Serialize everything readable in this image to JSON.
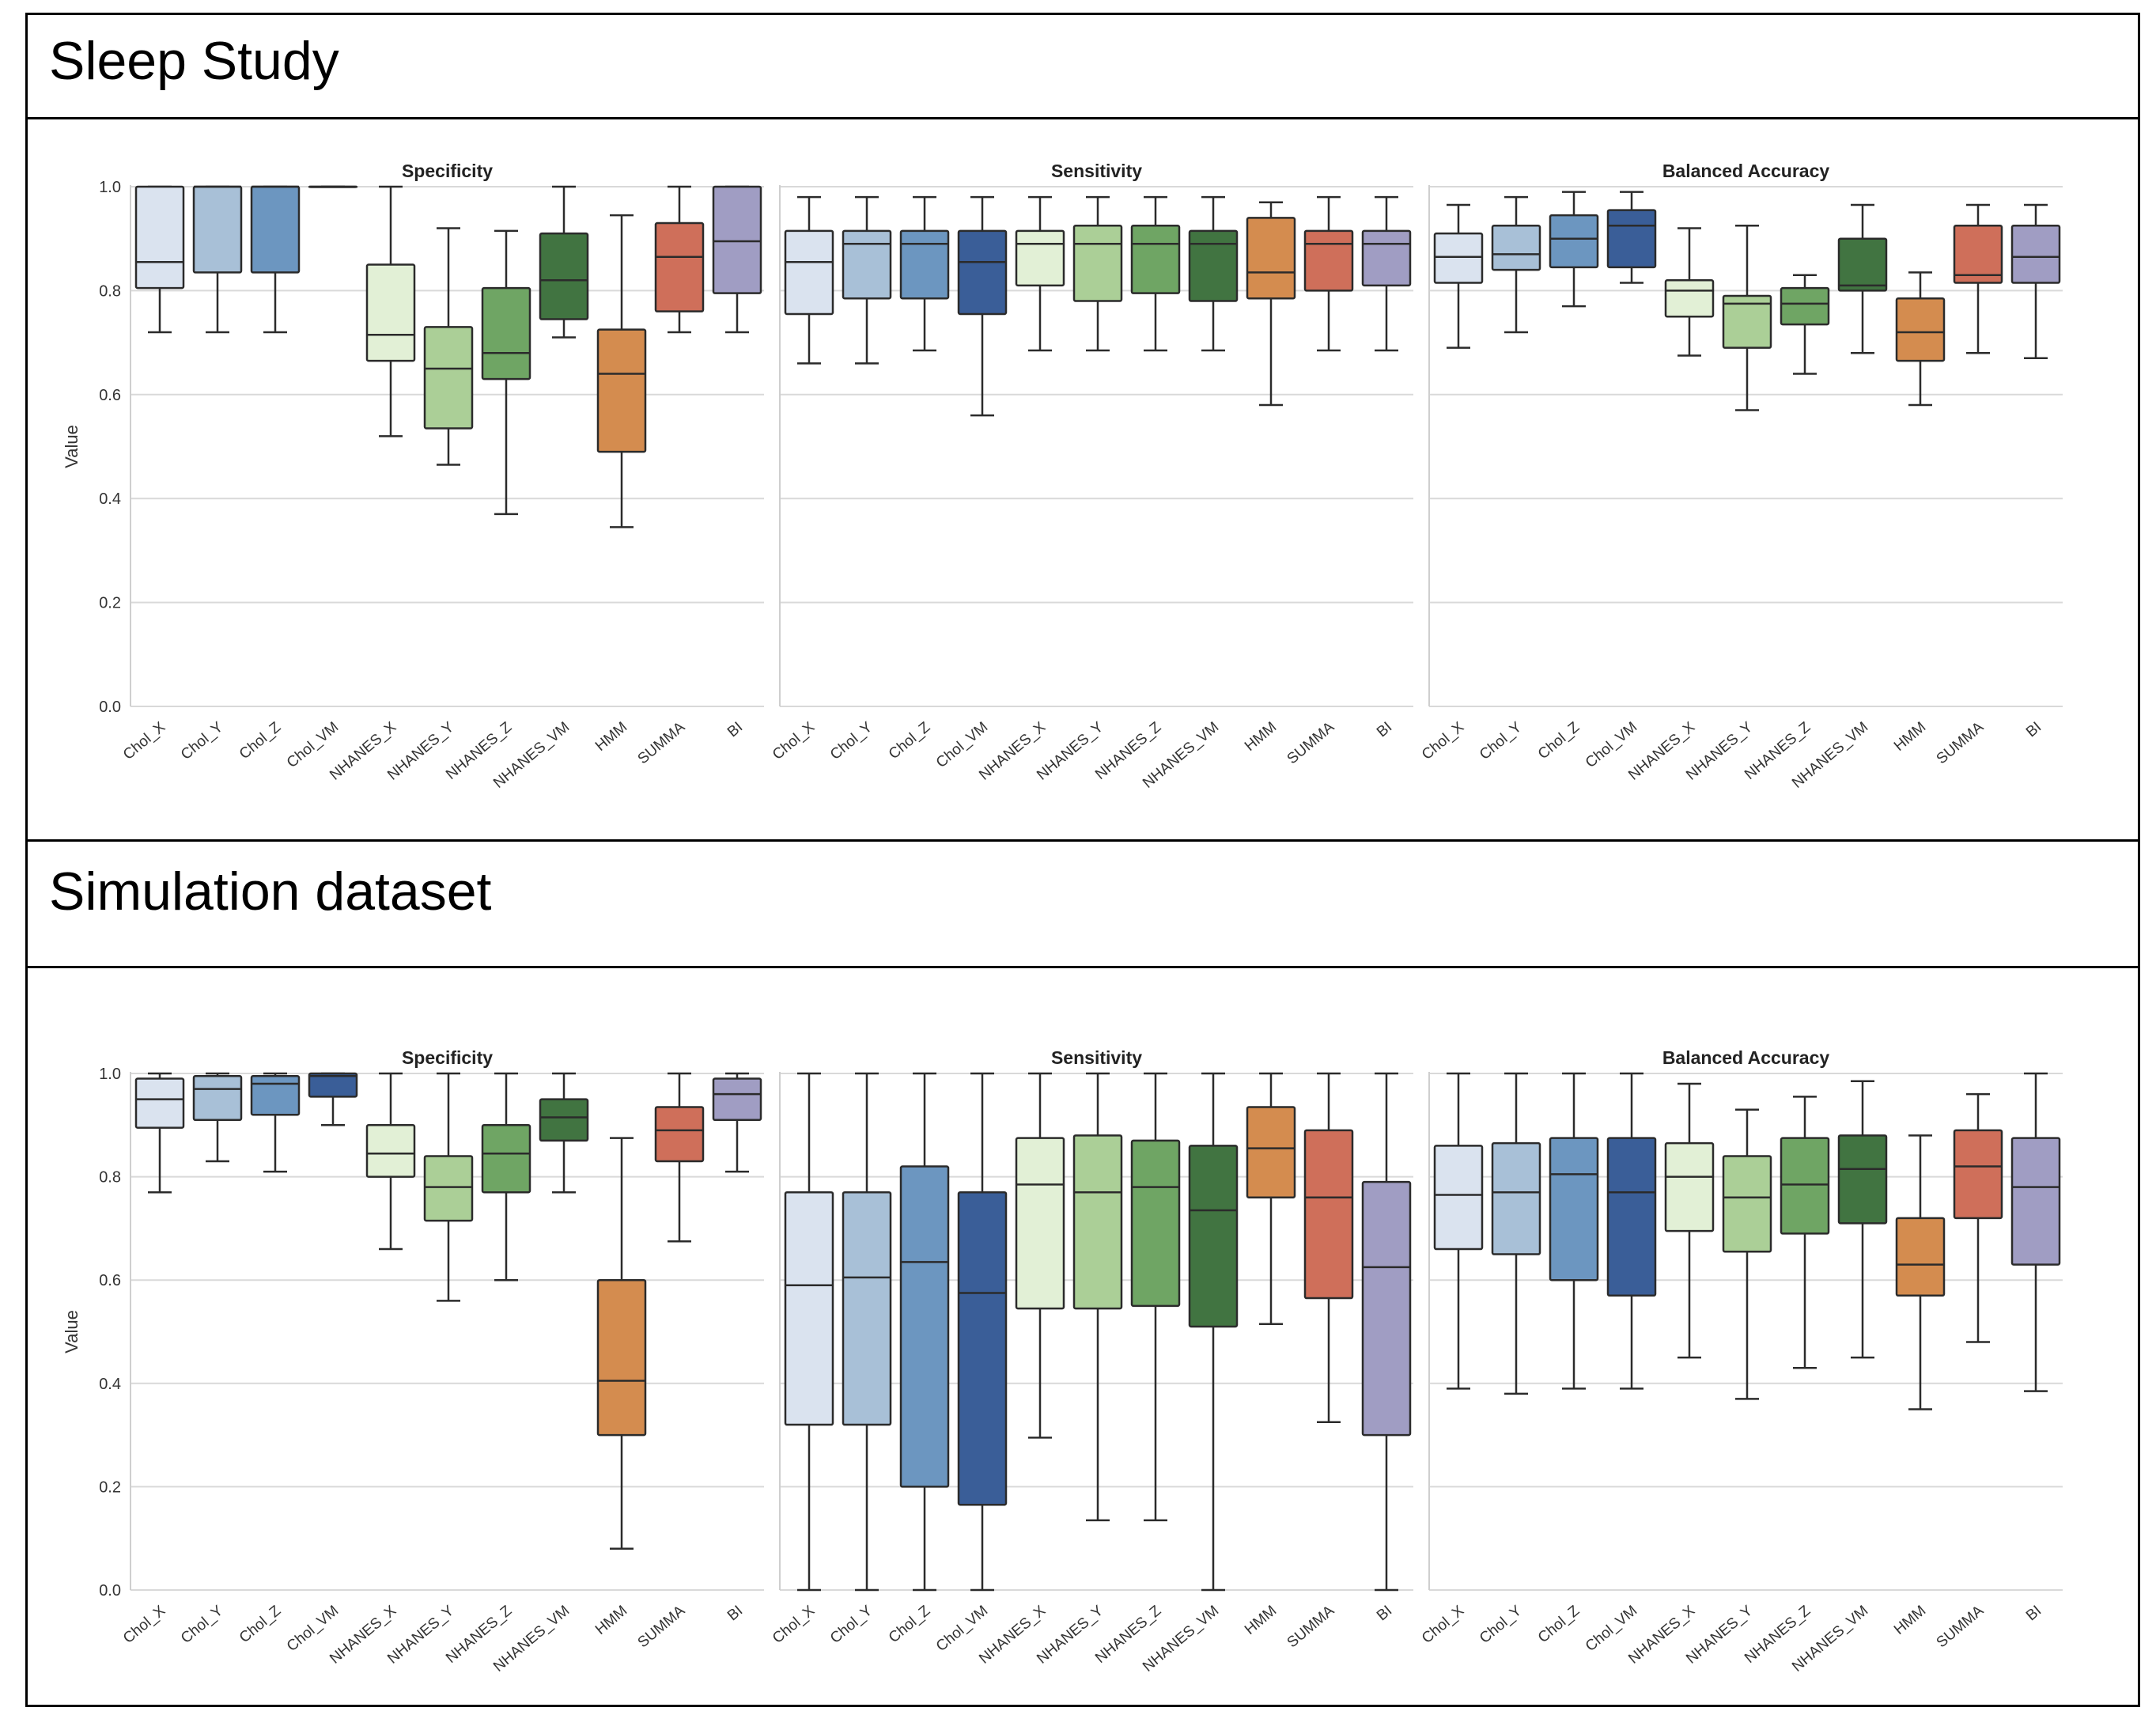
{
  "figure": {
    "sections": [
      {
        "title": "Sleep Study"
      },
      {
        "title": "Simulation dataset"
      }
    ]
  },
  "palette": {
    "Chol_X": "#dae3ef",
    "Chol_Y": "#a8c0d7",
    "Chol_Z": "#6c96c0",
    "Chol_VM": "#3a5e98",
    "NHANES_X": "#e2f0d6",
    "NHANES_Y": "#abcf97",
    "NHANES_Z": "#6fa564",
    "NHANES_VM": "#417441",
    "HMM": "#d48c4f",
    "SUMMA": "#cf6f5a",
    "BI": "#a09dc3",
    "line": "#2b2b2b",
    "grid": "#d9d9d9"
  },
  "chart_data": [
    {
      "type": "box",
      "section": "Sleep Study",
      "ylabel": "Value",
      "ylim": [
        0,
        1
      ],
      "yticks": [
        "0.0",
        "0.2",
        "0.4",
        "0.6",
        "0.8",
        "1.0"
      ],
      "grid": "horizontal",
      "categories": [
        "Chol_X",
        "Chol_Y",
        "Chol_Z",
        "Chol_VM",
        "NHANES_X",
        "NHANES_Y",
        "NHANES_Z",
        "NHANES_VM",
        "HMM",
        "SUMMA",
        "BI"
      ],
      "panels": [
        {
          "title": "Specificity",
          "boxes": [
            {
              "min": 0.72,
              "q1": 0.805,
              "median": 0.855,
              "q3": 1.0,
              "max": 1.0
            },
            {
              "min": 0.72,
              "q1": 0.835,
              "median": 1.0,
              "q3": 1.0,
              "max": 1.0
            },
            {
              "min": 0.72,
              "q1": 0.835,
              "median": 1.0,
              "q3": 1.0,
              "max": 1.0
            },
            {
              "min": 1.0,
              "q1": 1.0,
              "median": 1.0,
              "q3": 1.0,
              "max": 1.0
            },
            {
              "min": 0.52,
              "q1": 0.665,
              "median": 0.715,
              "q3": 0.85,
              "max": 1.0
            },
            {
              "min": 0.465,
              "q1": 0.535,
              "median": 0.65,
              "q3": 0.73,
              "max": 0.92
            },
            {
              "min": 0.37,
              "q1": 0.63,
              "median": 0.68,
              "q3": 0.805,
              "max": 0.915
            },
            {
              "min": 0.71,
              "q1": 0.745,
              "median": 0.82,
              "q3": 0.91,
              "max": 1.0
            },
            {
              "min": 0.345,
              "q1": 0.49,
              "median": 0.64,
              "q3": 0.725,
              "max": 0.945
            },
            {
              "min": 0.72,
              "q1": 0.76,
              "median": 0.865,
              "q3": 0.93,
              "max": 1.0
            },
            {
              "min": 0.72,
              "q1": 0.795,
              "median": 0.895,
              "q3": 1.0,
              "max": 1.0
            }
          ]
        },
        {
          "title": "Sensitivity",
          "boxes": [
            {
              "min": 0.66,
              "q1": 0.755,
              "median": 0.855,
              "q3": 0.915,
              "max": 0.98
            },
            {
              "min": 0.66,
              "q1": 0.785,
              "median": 0.89,
              "q3": 0.915,
              "max": 0.98
            },
            {
              "min": 0.685,
              "q1": 0.785,
              "median": 0.89,
              "q3": 0.915,
              "max": 0.98
            },
            {
              "min": 0.56,
              "q1": 0.755,
              "median": 0.855,
              "q3": 0.915,
              "max": 0.98
            },
            {
              "min": 0.685,
              "q1": 0.81,
              "median": 0.89,
              "q3": 0.915,
              "max": 0.98
            },
            {
              "min": 0.685,
              "q1": 0.78,
              "median": 0.89,
              "q3": 0.925,
              "max": 0.98
            },
            {
              "min": 0.685,
              "q1": 0.795,
              "median": 0.89,
              "q3": 0.925,
              "max": 0.98
            },
            {
              "min": 0.685,
              "q1": 0.78,
              "median": 0.89,
              "q3": 0.915,
              "max": 0.98
            },
            {
              "min": 0.58,
              "q1": 0.785,
              "median": 0.835,
              "q3": 0.94,
              "max": 0.97
            },
            {
              "min": 0.685,
              "q1": 0.8,
              "median": 0.89,
              "q3": 0.915,
              "max": 0.98
            },
            {
              "min": 0.685,
              "q1": 0.81,
              "median": 0.89,
              "q3": 0.915,
              "max": 0.98
            }
          ]
        },
        {
          "title": "Balanced Accuracy",
          "boxes": [
            {
              "min": 0.69,
              "q1": 0.815,
              "median": 0.865,
              "q3": 0.91,
              "max": 0.965
            },
            {
              "min": 0.72,
              "q1": 0.84,
              "median": 0.87,
              "q3": 0.925,
              "max": 0.98
            },
            {
              "min": 0.77,
              "q1": 0.845,
              "median": 0.9,
              "q3": 0.945,
              "max": 0.99
            },
            {
              "min": 0.815,
              "q1": 0.845,
              "median": 0.925,
              "q3": 0.955,
              "max": 0.99
            },
            {
              "min": 0.675,
              "q1": 0.75,
              "median": 0.8,
              "q3": 0.82,
              "max": 0.92
            },
            {
              "min": 0.57,
              "q1": 0.69,
              "median": 0.775,
              "q3": 0.79,
              "max": 0.925
            },
            {
              "min": 0.64,
              "q1": 0.735,
              "median": 0.775,
              "q3": 0.805,
              "max": 0.83
            },
            {
              "min": 0.68,
              "q1": 0.8,
              "median": 0.81,
              "q3": 0.9,
              "max": 0.965
            },
            {
              "min": 0.58,
              "q1": 0.665,
              "median": 0.72,
              "q3": 0.785,
              "max": 0.835
            },
            {
              "min": 0.68,
              "q1": 0.815,
              "median": 0.83,
              "q3": 0.925,
              "max": 0.965
            },
            {
              "min": 0.67,
              "q1": 0.815,
              "median": 0.865,
              "q3": 0.925,
              "max": 0.965
            }
          ]
        }
      ]
    },
    {
      "type": "box",
      "section": "Simulation dataset",
      "ylabel": "Value",
      "ylim": [
        0,
        1
      ],
      "yticks": [
        "0.0",
        "0.2",
        "0.4",
        "0.6",
        "0.8",
        "1.0"
      ],
      "grid": "horizontal",
      "categories": [
        "Chol_X",
        "Chol_Y",
        "Chol_Z",
        "Chol_VM",
        "NHANES_X",
        "NHANES_Y",
        "NHANES_Z",
        "NHANES_VM",
        "HMM",
        "SUMMA",
        "BI"
      ],
      "panels": [
        {
          "title": "Specificity",
          "boxes": [
            {
              "min": 0.77,
              "q1": 0.895,
              "median": 0.95,
              "q3": 0.99,
              "max": 1.0
            },
            {
              "min": 0.83,
              "q1": 0.91,
              "median": 0.97,
              "q3": 0.995,
              "max": 1.0
            },
            {
              "min": 0.81,
              "q1": 0.92,
              "median": 0.98,
              "q3": 0.995,
              "max": 1.0
            },
            {
              "min": 0.9,
              "q1": 0.955,
              "median": 0.995,
              "q3": 1.0,
              "max": 1.0
            },
            {
              "min": 0.66,
              "q1": 0.8,
              "median": 0.845,
              "q3": 0.9,
              "max": 1.0
            },
            {
              "min": 0.56,
              "q1": 0.715,
              "median": 0.78,
              "q3": 0.84,
              "max": 1.0
            },
            {
              "min": 0.6,
              "q1": 0.77,
              "median": 0.845,
              "q3": 0.9,
              "max": 1.0
            },
            {
              "min": 0.77,
              "q1": 0.87,
              "median": 0.915,
              "q3": 0.95,
              "max": 1.0
            },
            {
              "min": 0.08,
              "q1": 0.3,
              "median": 0.405,
              "q3": 0.6,
              "max": 0.875
            },
            {
              "min": 0.675,
              "q1": 0.83,
              "median": 0.89,
              "q3": 0.935,
              "max": 1.0
            },
            {
              "min": 0.81,
              "q1": 0.91,
              "median": 0.96,
              "q3": 0.99,
              "max": 1.0
            }
          ]
        },
        {
          "title": "Sensitivity",
          "boxes": [
            {
              "min": 0.0,
              "q1": 0.32,
              "median": 0.59,
              "q3": 0.77,
              "max": 1.0
            },
            {
              "min": 0.0,
              "q1": 0.32,
              "median": 0.605,
              "q3": 0.77,
              "max": 1.0
            },
            {
              "min": 0.0,
              "q1": 0.2,
              "median": 0.635,
              "q3": 0.82,
              "max": 1.0
            },
            {
              "min": 0.0,
              "q1": 0.165,
              "median": 0.575,
              "q3": 0.77,
              "max": 1.0
            },
            {
              "min": 0.295,
              "q1": 0.545,
              "median": 0.785,
              "q3": 0.875,
              "max": 1.0
            },
            {
              "min": 0.135,
              "q1": 0.545,
              "median": 0.77,
              "q3": 0.88,
              "max": 1.0
            },
            {
              "min": 0.135,
              "q1": 0.55,
              "median": 0.78,
              "q3": 0.87,
              "max": 1.0
            },
            {
              "min": 0.0,
              "q1": 0.51,
              "median": 0.735,
              "q3": 0.86,
              "max": 1.0
            },
            {
              "min": 0.515,
              "q1": 0.76,
              "median": 0.855,
              "q3": 0.935,
              "max": 1.0
            },
            {
              "min": 0.325,
              "q1": 0.565,
              "median": 0.76,
              "q3": 0.89,
              "max": 1.0
            },
            {
              "min": 0.0,
              "q1": 0.3,
              "median": 0.625,
              "q3": 0.79,
              "max": 1.0
            }
          ]
        },
        {
          "title": "Balanced Accuracy",
          "boxes": [
            {
              "min": 0.39,
              "q1": 0.66,
              "median": 0.765,
              "q3": 0.86,
              "max": 1.0
            },
            {
              "min": 0.38,
              "q1": 0.65,
              "median": 0.77,
              "q3": 0.865,
              "max": 1.0
            },
            {
              "min": 0.39,
              "q1": 0.6,
              "median": 0.805,
              "q3": 0.875,
              "max": 1.0
            },
            {
              "min": 0.39,
              "q1": 0.57,
              "median": 0.77,
              "q3": 0.875,
              "max": 1.0
            },
            {
              "min": 0.45,
              "q1": 0.695,
              "median": 0.8,
              "q3": 0.865,
              "max": 0.98
            },
            {
              "min": 0.37,
              "q1": 0.655,
              "median": 0.76,
              "q3": 0.84,
              "max": 0.93
            },
            {
              "min": 0.43,
              "q1": 0.69,
              "median": 0.785,
              "q3": 0.875,
              "max": 0.955
            },
            {
              "min": 0.45,
              "q1": 0.71,
              "median": 0.815,
              "q3": 0.88,
              "max": 0.985
            },
            {
              "min": 0.35,
              "q1": 0.57,
              "median": 0.63,
              "q3": 0.72,
              "max": 0.88
            },
            {
              "min": 0.48,
              "q1": 0.72,
              "median": 0.82,
              "q3": 0.89,
              "max": 0.96
            },
            {
              "min": 0.385,
              "q1": 0.63,
              "median": 0.78,
              "q3": 0.875,
              "max": 1.0
            }
          ]
        }
      ]
    }
  ]
}
